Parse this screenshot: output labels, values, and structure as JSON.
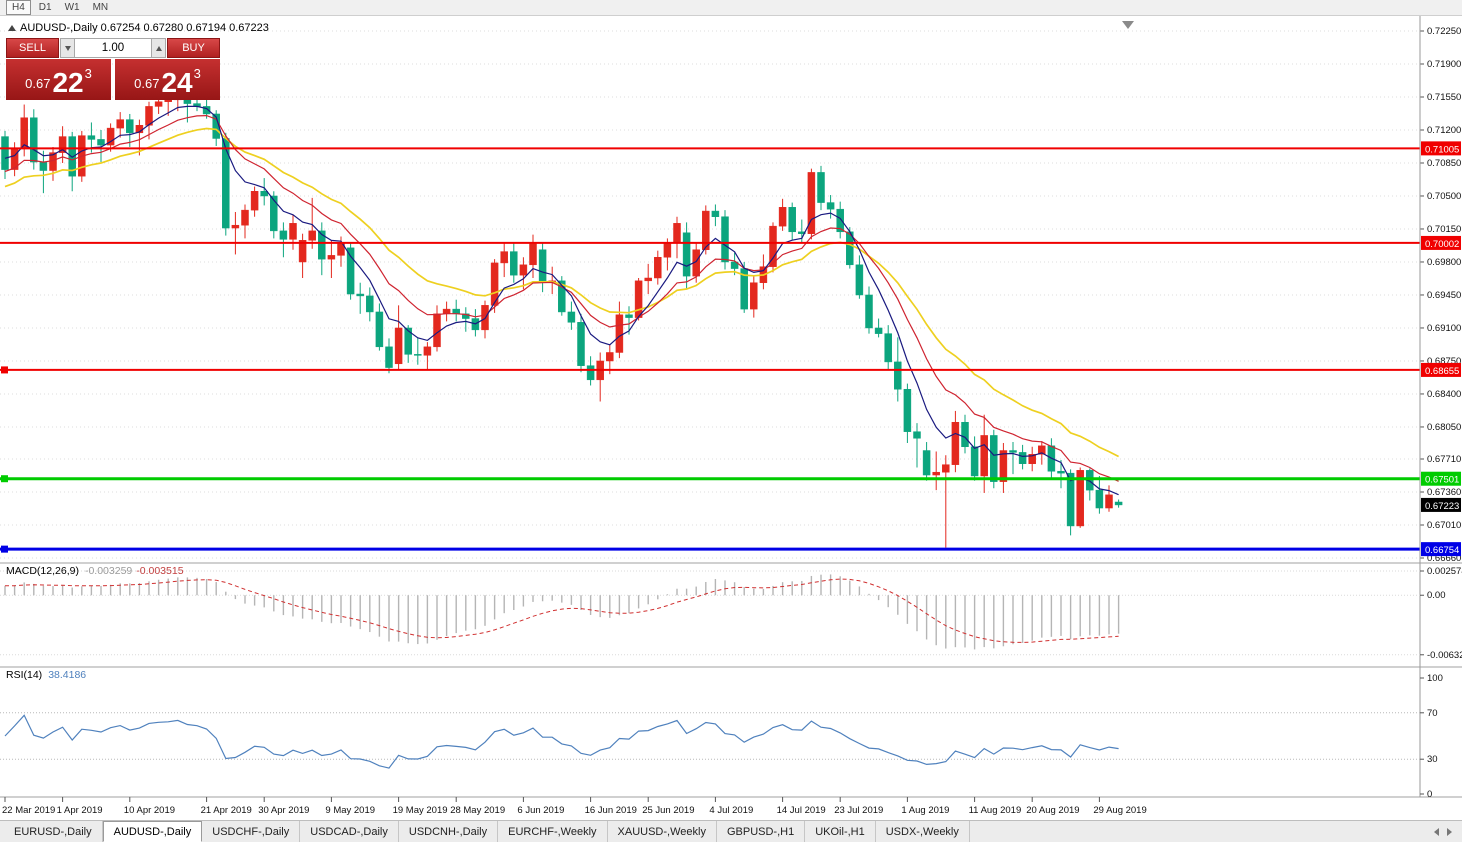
{
  "toolbar": {
    "timeframes": [
      {
        "label": "H4",
        "framed": true
      },
      {
        "label": "D1",
        "framed": false
      },
      {
        "label": "W1",
        "framed": false
      },
      {
        "label": "MN",
        "framed": false
      }
    ]
  },
  "chart": {
    "title": "AUDUSD-,Daily  0.67254 0.67280 0.67194 0.67223"
  },
  "one_click": {
    "sell_label": "SELL",
    "buy_label": "BUY",
    "volume": "1.00",
    "sell_price": {
      "prefix": "0.67",
      "big": "22",
      "sup": "3"
    },
    "buy_price": {
      "prefix": "0.67",
      "big": "24",
      "sup": "3"
    }
  },
  "indicators": {
    "macd": {
      "label": "MACD(12,26,9)",
      "value_main": "-0.003259",
      "value_signal": "-0.003515",
      "axis": [
        "0.002574",
        "0.00",
        "-0.006326"
      ]
    },
    "rsi": {
      "label": "RSI(14)",
      "value": "38.4186",
      "axis": [
        "100",
        "70",
        "30",
        "0"
      ],
      "levels": [
        70,
        30
      ]
    }
  },
  "tabs": {
    "items": [
      {
        "label": "EURUSD-,Daily",
        "active": false
      },
      {
        "label": "AUDUSD-,Daily",
        "active": true
      },
      {
        "label": "USDCHF-,Daily",
        "active": false
      },
      {
        "label": "USDCAD-,Daily",
        "active": false
      },
      {
        "label": "USDCNH-,Daily",
        "active": false
      },
      {
        "label": "EURCHF-,Weekly",
        "active": false
      },
      {
        "label": "XAUUSD-,Weekly",
        "active": false
      },
      {
        "label": "GBPUSD-,H1",
        "active": false
      },
      {
        "label": "UKOil-,H1",
        "active": false
      },
      {
        "label": "USDX-,Weekly",
        "active": false
      }
    ]
  },
  "chart_data": {
    "type": "candlestick",
    "symbol": "AUDUSD",
    "timeframe": "Daily",
    "ohlc": {
      "open": 0.67254,
      "high": 0.6728,
      "low": 0.67194,
      "close": 0.67223
    },
    "price_axis_labels": [
      "0.72250",
      "0.71900",
      "0.71550",
      "0.71200",
      "0.70850",
      "0.70500",
      "0.70150",
      "0.69800",
      "0.69450",
      "0.69100",
      "0.68750",
      "0.68400",
      "0.68050",
      "0.67710",
      "0.67360",
      "0.67010",
      "0.66660"
    ],
    "colors": {
      "bull": "#e3281e",
      "bear": "#0ca57e",
      "grid": "#dcdcdc"
    },
    "hlines": [
      {
        "price": 0.71005,
        "label": "0.71005",
        "color": "#f00000",
        "width": 2,
        "handle": false
      },
      {
        "price": 0.70002,
        "label": "0.70002",
        "color": "#f00000",
        "width": 2,
        "handle": false
      },
      {
        "price": 0.68655,
        "label": "0.68655",
        "color": "#f00000",
        "width": 2,
        "handle": true
      },
      {
        "price": 0.67501,
        "label": "0.67501",
        "color": "#00cc00",
        "width": 3,
        "handle": true
      },
      {
        "price": 0.66754,
        "label": "0.66754",
        "color": "#0000e6",
        "width": 3,
        "handle": true
      }
    ],
    "current_price": {
      "price": 0.67223,
      "label": "0.67223",
      "color": "#000000"
    },
    "ma_lines": [
      {
        "name": "ma-slow-yellow",
        "period": 21,
        "seed": 0.706,
        "color": "#eed020",
        "width": 1.7
      },
      {
        "name": "ma-mid-red",
        "period": 12,
        "seed": 0.7076,
        "color": "#cf2430",
        "width": 1.2
      },
      {
        "name": "ma-fast-navy",
        "period": 6,
        "seed": 0.709,
        "color": "#1a1a80",
        "width": 1.2
      }
    ],
    "macd_series": {
      "fast": 12,
      "slow": 26,
      "signal": 9,
      "seed_fast": 0.7083,
      "seed_slow": 0.7073,
      "hist_color": "#b5b5b5",
      "signal_color": "#d03030"
    },
    "rsi_series": {
      "period": 14,
      "color": "#4f81bd"
    },
    "date_labels": [
      {
        "i": 0,
        "label": "22 Mar 2019"
      },
      {
        "i": 6,
        "label": "1 Apr 2019"
      },
      {
        "i": 13,
        "label": "10 Apr 2019"
      },
      {
        "i": 21,
        "label": "21 Apr 2019"
      },
      {
        "i": 27,
        "label": "30 Apr 2019"
      },
      {
        "i": 34,
        "label": "9 May 2019"
      },
      {
        "i": 41,
        "label": "19 May 2019"
      },
      {
        "i": 47,
        "label": "28 May 2019"
      },
      {
        "i": 54,
        "label": "6 Jun 2019"
      },
      {
        "i": 61,
        "label": "16 Jun 2019"
      },
      {
        "i": 67,
        "label": "25 Jun 2019"
      },
      {
        "i": 74,
        "label": "4 Jul 2019"
      },
      {
        "i": 81,
        "label": "14 Jul 2019"
      },
      {
        "i": 87,
        "label": "23 Jul 2019"
      },
      {
        "i": 94,
        "label": "1 Aug 2019"
      },
      {
        "i": 101,
        "label": "11 Aug 2019"
      },
      {
        "i": 107,
        "label": "20 Aug 2019"
      },
      {
        "i": 114,
        "label": "29 Aug 2019"
      }
    ],
    "candles": [
      [
        0.7113,
        0.7119,
        0.7068,
        0.7078
      ],
      [
        0.7078,
        0.7107,
        0.7071,
        0.71
      ],
      [
        0.71,
        0.7147,
        0.7092,
        0.7133
      ],
      [
        0.7133,
        0.7142,
        0.7078,
        0.7086
      ],
      [
        0.7086,
        0.7098,
        0.7053,
        0.7077
      ],
      [
        0.7077,
        0.7102,
        0.7066,
        0.7096
      ],
      [
        0.7096,
        0.7124,
        0.7085,
        0.7113
      ],
      [
        0.7113,
        0.7118,
        0.7055,
        0.7071
      ],
      [
        0.7071,
        0.7119,
        0.7065,
        0.7114
      ],
      [
        0.7114,
        0.7128,
        0.7096,
        0.711
      ],
      [
        0.711,
        0.712,
        0.7086,
        0.7104
      ],
      [
        0.7104,
        0.7127,
        0.7097,
        0.7122
      ],
      [
        0.7122,
        0.7139,
        0.7112,
        0.7131
      ],
      [
        0.7131,
        0.7137,
        0.7102,
        0.7117
      ],
      [
        0.7117,
        0.7131,
        0.7093,
        0.7125
      ],
      [
        0.7125,
        0.715,
        0.711,
        0.7145
      ],
      [
        0.7145,
        0.7157,
        0.7137,
        0.715
      ],
      [
        0.715,
        0.7162,
        0.7135,
        0.7152
      ],
      [
        0.7152,
        0.7169,
        0.714,
        0.7158
      ],
      [
        0.7158,
        0.7168,
        0.7128,
        0.7148
      ],
      [
        0.7148,
        0.7156,
        0.714,
        0.7145
      ],
      [
        0.7145,
        0.7154,
        0.7132,
        0.7137
      ],
      [
        0.7137,
        0.7141,
        0.7103,
        0.7111
      ],
      [
        0.7111,
        0.7117,
        0.7008,
        0.7016
      ],
      [
        0.7016,
        0.7033,
        0.6988,
        0.7019
      ],
      [
        0.7019,
        0.7041,
        0.7005,
        0.7035
      ],
      [
        0.7035,
        0.706,
        0.7028,
        0.7055
      ],
      [
        0.7055,
        0.7069,
        0.704,
        0.705
      ],
      [
        0.705,
        0.7055,
        0.7005,
        0.7013
      ],
      [
        0.7013,
        0.7022,
        0.6985,
        0.7004
      ],
      [
        0.7004,
        0.703,
        0.6993,
        0.7021
      ],
      [
        0.698,
        0.701,
        0.6963,
        0.7003
      ],
      [
        0.7003,
        0.7048,
        0.6994,
        0.7013
      ],
      [
        0.7013,
        0.7022,
        0.6966,
        0.6983
      ],
      [
        0.6983,
        0.7003,
        0.6963,
        0.6987
      ],
      [
        0.6987,
        0.7007,
        0.6975,
        0.7
      ],
      [
        0.6995,
        0.7,
        0.694,
        0.6946
      ],
      [
        0.6946,
        0.6958,
        0.6925,
        0.6944
      ],
      [
        0.6944,
        0.6953,
        0.6917,
        0.6927
      ],
      [
        0.6927,
        0.6936,
        0.6886,
        0.689
      ],
      [
        0.689,
        0.6899,
        0.6862,
        0.6868
      ],
      [
        0.6872,
        0.6934,
        0.6866,
        0.691
      ],
      [
        0.691,
        0.6913,
        0.6873,
        0.6882
      ],
      [
        0.6882,
        0.69,
        0.6871,
        0.6881
      ],
      [
        0.6881,
        0.6895,
        0.6865,
        0.689
      ],
      [
        0.689,
        0.6934,
        0.6885,
        0.6925
      ],
      [
        0.6925,
        0.6938,
        0.6917,
        0.693
      ],
      [
        0.693,
        0.694,
        0.6917,
        0.6925
      ],
      [
        0.6925,
        0.6932,
        0.6906,
        0.692
      ],
      [
        0.692,
        0.693,
        0.6901,
        0.6908
      ],
      [
        0.6908,
        0.6939,
        0.6899,
        0.6934
      ],
      [
        0.6934,
        0.6983,
        0.6926,
        0.6979
      ],
      [
        0.6979,
        0.7,
        0.6964,
        0.6991
      ],
      [
        0.6991,
        0.7,
        0.6958,
        0.6966
      ],
      [
        0.6966,
        0.6985,
        0.6951,
        0.6977
      ],
      [
        0.6977,
        0.7009,
        0.6963,
        0.7
      ],
      [
        0.6993,
        0.7,
        0.6948,
        0.696
      ],
      [
        0.696,
        0.6975,
        0.6946,
        0.696
      ],
      [
        0.696,
        0.6965,
        0.6923,
        0.6927
      ],
      [
        0.6927,
        0.6938,
        0.6908,
        0.6916
      ],
      [
        0.6916,
        0.6925,
        0.6863,
        0.687
      ],
      [
        0.687,
        0.688,
        0.6849,
        0.6855
      ],
      [
        0.6855,
        0.6884,
        0.6832,
        0.6875
      ],
      [
        0.6875,
        0.6893,
        0.6861,
        0.6884
      ],
      [
        0.6884,
        0.6938,
        0.6878,
        0.6924
      ],
      [
        0.6924,
        0.6933,
        0.6903,
        0.6921
      ],
      [
        0.6921,
        0.6963,
        0.6918,
        0.696
      ],
      [
        0.696,
        0.6978,
        0.6946,
        0.6963
      ],
      [
        0.6963,
        0.6992,
        0.6956,
        0.6985
      ],
      [
        0.6985,
        0.7005,
        0.6971,
        0.7
      ],
      [
        0.7,
        0.7028,
        0.6984,
        0.7021
      ],
      [
        0.7011,
        0.7022,
        0.6952,
        0.6965
      ],
      [
        0.6965,
        0.7,
        0.6958,
        0.6993
      ],
      [
        0.6993,
        0.704,
        0.6988,
        0.7034
      ],
      [
        0.7034,
        0.7041,
        0.7018,
        0.7028
      ],
      [
        0.7028,
        0.7035,
        0.6972,
        0.698
      ],
      [
        0.698,
        0.699,
        0.6966,
        0.6973
      ],
      [
        0.6973,
        0.698,
        0.6926,
        0.693
      ],
      [
        0.693,
        0.6966,
        0.6921,
        0.6958
      ],
      [
        0.6958,
        0.6988,
        0.6951,
        0.6975
      ],
      [
        0.6975,
        0.7022,
        0.6969,
        0.7018
      ],
      [
        0.7018,
        0.7047,
        0.7013,
        0.7038
      ],
      [
        0.7038,
        0.7043,
        0.7003,
        0.7012
      ],
      [
        0.7012,
        0.7025,
        0.7,
        0.701
      ],
      [
        0.701,
        0.7079,
        0.7004,
        0.7075
      ],
      [
        0.7075,
        0.7082,
        0.7035,
        0.7043
      ],
      [
        0.7043,
        0.7051,
        0.7026,
        0.7036
      ],
      [
        0.7036,
        0.7044,
        0.7005,
        0.7012
      ],
      [
        0.7012,
        0.7017,
        0.6973,
        0.6977
      ],
      [
        0.6977,
        0.6987,
        0.6941,
        0.6945
      ],
      [
        0.6945,
        0.6954,
        0.6904,
        0.691
      ],
      [
        0.691,
        0.692,
        0.69,
        0.6904
      ],
      [
        0.6904,
        0.6913,
        0.6866,
        0.6874
      ],
      [
        0.6874,
        0.69,
        0.6832,
        0.6845
      ],
      [
        0.6845,
        0.6851,
        0.6788,
        0.68
      ],
      [
        0.68,
        0.6809,
        0.6762,
        0.6793
      ],
      [
        0.678,
        0.6789,
        0.6748,
        0.6754
      ],
      [
        0.6754,
        0.6779,
        0.6738,
        0.6757
      ],
      [
        0.6757,
        0.6775,
        0.6677,
        0.6765
      ],
      [
        0.6765,
        0.6822,
        0.6757,
        0.681
      ],
      [
        0.681,
        0.6818,
        0.6777,
        0.6784
      ],
      [
        0.6784,
        0.6795,
        0.6748,
        0.6753
      ],
      [
        0.6753,
        0.6818,
        0.6735,
        0.6796
      ],
      [
        0.6796,
        0.6802,
        0.674,
        0.6747
      ],
      [
        0.6747,
        0.6788,
        0.6735,
        0.678
      ],
      [
        0.678,
        0.6789,
        0.6755,
        0.6778
      ],
      [
        0.6778,
        0.6786,
        0.676,
        0.6766
      ],
      [
        0.6766,
        0.6784,
        0.6758,
        0.6776
      ],
      [
        0.6776,
        0.679,
        0.6765,
        0.6785
      ],
      [
        0.6785,
        0.6793,
        0.675,
        0.6758
      ],
      [
        0.6758,
        0.677,
        0.674,
        0.6756
      ],
      [
        0.6756,
        0.676,
        0.669,
        0.67
      ],
      [
        0.67,
        0.6762,
        0.6698,
        0.6759
      ],
      [
        0.6759,
        0.6761,
        0.6727,
        0.6738
      ],
      [
        0.6738,
        0.6753,
        0.6713,
        0.6719
      ],
      [
        0.6719,
        0.6743,
        0.6715,
        0.6733
      ],
      [
        0.67254,
        0.6728,
        0.67194,
        0.67223
      ]
    ]
  }
}
